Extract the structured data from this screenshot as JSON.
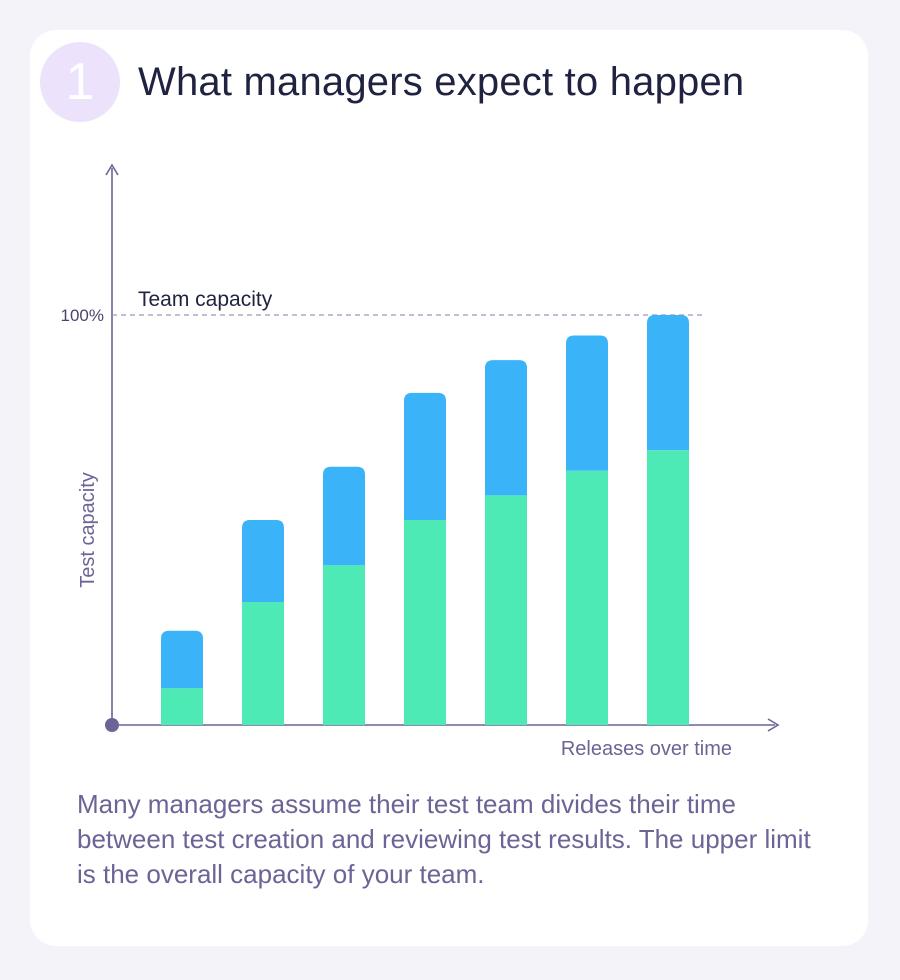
{
  "header": {
    "step_number": "1",
    "title": "What managers expect to happen"
  },
  "chart_data": {
    "type": "bar",
    "stacked": true,
    "ylabel": "Test capacity",
    "xlabel": "Releases over time",
    "ylim": [
      0,
      100
    ],
    "y_tick": "100%",
    "reference_line": {
      "value": 100,
      "label": "Team capacity"
    },
    "categories": [
      "",
      "",
      "",
      "",
      "",
      "",
      ""
    ],
    "series": [
      {
        "color": "#4eeab5",
        "values": [
          9,
          30,
          39,
          50,
          56,
          62,
          67
        ]
      },
      {
        "color": "#3bb3f9",
        "values": [
          14,
          20,
          24,
          31,
          33,
          33,
          33
        ]
      }
    ]
  },
  "description": "Many managers assume their test team divides their time between test creation and reviewing test results. The upper limit is the overall capacity of your team."
}
